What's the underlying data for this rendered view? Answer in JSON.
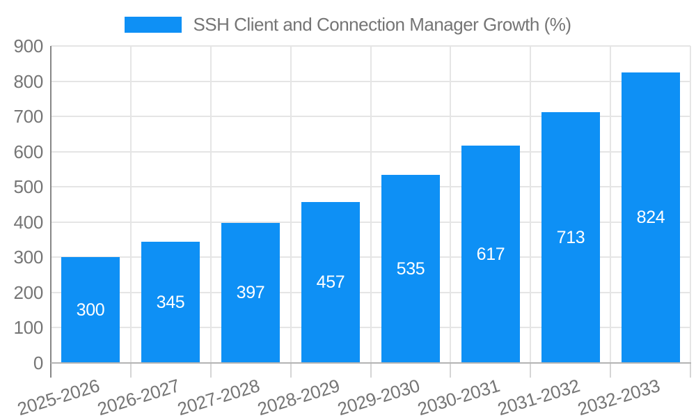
{
  "legend": {
    "label": "SSH Client and Connection Manager Growth (%)"
  },
  "colors": {
    "bar": "#0e90f5",
    "grid": "#e5e5e5",
    "y_axis": "#878787",
    "x_axis": "#b3b3b3",
    "tick": "#d5d5d5",
    "text": "#757575",
    "value_label": "#ffffff"
  },
  "chart_data": {
    "type": "bar",
    "title": "SSH Client and Connection Manager Growth (%)",
    "categories": [
      "2025-2026",
      "2026-2027",
      "2027-2028",
      "2028-2029",
      "2029-2030",
      "2030-2031",
      "2031-2032",
      "2032-2033"
    ],
    "values": [
      300,
      345,
      397,
      457,
      535,
      617,
      713,
      824
    ],
    "value_labels_position": "inside-center",
    "xlabel": "",
    "ylabel": "",
    "ylim": [
      0,
      900
    ],
    "ytick_interval": 100,
    "ytick_labels": [
      "0",
      "100",
      "200",
      "300",
      "400",
      "500",
      "600",
      "700",
      "800",
      "900"
    ],
    "grid": true,
    "legend_position": "top-center",
    "x_label_rotation_deg": -17
  }
}
